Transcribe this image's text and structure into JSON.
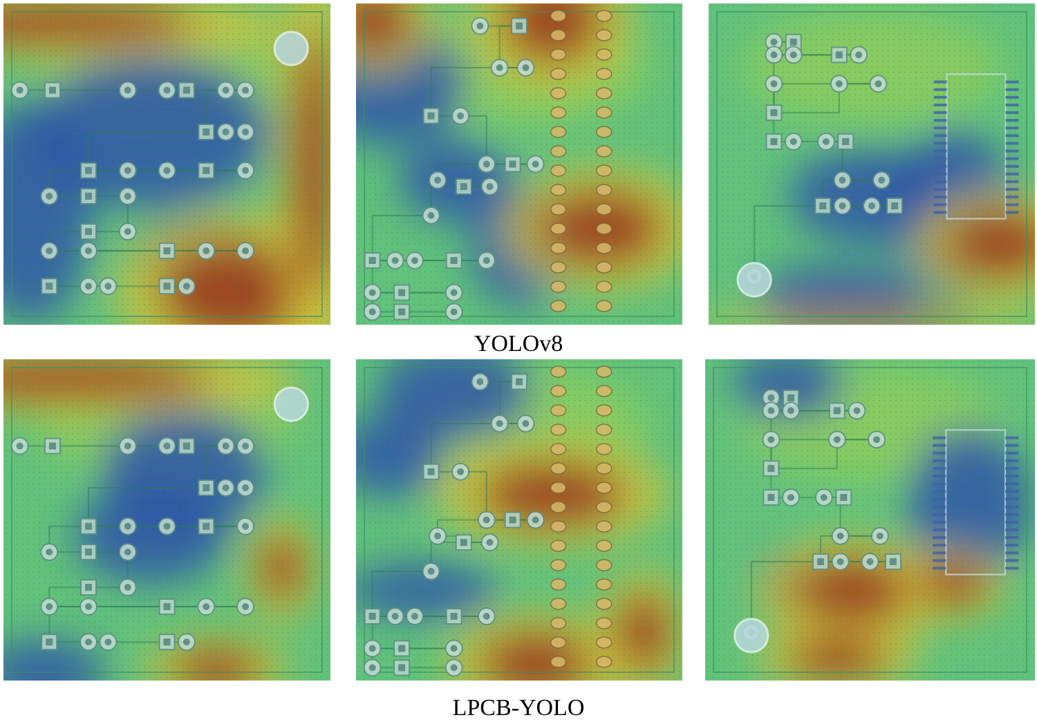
{
  "figure": {
    "rows": [
      {
        "label": "YOLOv8",
        "panels": [
          {
            "name": "yolov8-board-1",
            "pads": [
              [
                0.05,
                0.27
              ],
              [
                0.15,
                0.27
              ],
              [
                0.38,
                0.27
              ],
              [
                0.5,
                0.27
              ],
              [
                0.56,
                0.27
              ],
              [
                0.68,
                0.27
              ],
              [
                0.74,
                0.27
              ],
              [
                0.62,
                0.4
              ],
              [
                0.68,
                0.4
              ],
              [
                0.74,
                0.4
              ],
              [
                0.26,
                0.52
              ],
              [
                0.38,
                0.52
              ],
              [
                0.5,
                0.52
              ],
              [
                0.62,
                0.52
              ],
              [
                0.74,
                0.52
              ],
              [
                0.14,
                0.6
              ],
              [
                0.26,
                0.6
              ],
              [
                0.38,
                0.6
              ],
              [
                0.38,
                0.71
              ],
              [
                0.26,
                0.71
              ],
              [
                0.14,
                0.77
              ],
              [
                0.26,
                0.77
              ],
              [
                0.5,
                0.77
              ],
              [
                0.62,
                0.77
              ],
              [
                0.74,
                0.77
              ],
              [
                0.14,
                0.88
              ],
              [
                0.26,
                0.88
              ],
              [
                0.32,
                0.88
              ],
              [
                0.5,
                0.88
              ],
              [
                0.56,
                0.88
              ]
            ],
            "hot": [
              [
                0.7,
                0.9,
                130,
                90
              ],
              [
                0.15,
                0.06,
                260,
                40
              ],
              [
                0.95,
                0.5,
                40,
                240
              ]
            ],
            "cold": [
              [
                0.45,
                0.4,
                170,
                110
              ],
              [
                0.08,
                0.65,
                90,
                160
              ],
              [
                0.6,
                0.78,
                90,
                60
              ]
            ]
          },
          {
            "name": "yolov8-board-2",
            "pads": [
              [
                0.38,
                0.07
              ],
              [
                0.5,
                0.07
              ],
              [
                0.44,
                0.2
              ],
              [
                0.52,
                0.2
              ],
              [
                0.23,
                0.35
              ],
              [
                0.32,
                0.35
              ],
              [
                0.4,
                0.5
              ],
              [
                0.48,
                0.5
              ],
              [
                0.55,
                0.5
              ],
              [
                0.25,
                0.55
              ],
              [
                0.33,
                0.57
              ],
              [
                0.41,
                0.57
              ],
              [
                0.23,
                0.66
              ],
              [
                0.05,
                0.8
              ],
              [
                0.12,
                0.8
              ],
              [
                0.18,
                0.8
              ],
              [
                0.3,
                0.8
              ],
              [
                0.4,
                0.8
              ],
              [
                0.05,
                0.9
              ],
              [
                0.14,
                0.9
              ],
              [
                0.3,
                0.9
              ],
              [
                0.05,
                0.96
              ],
              [
                0.14,
                0.96
              ],
              [
                0.3,
                0.96
              ]
            ],
            "hot": [
              [
                0.75,
                0.7,
                110,
                70
              ],
              [
                0.6,
                0.05,
                90,
                80
              ],
              [
                0.05,
                0.05,
                70,
                60
              ]
            ],
            "cold": [
              [
                0.1,
                0.25,
                110,
                90
              ],
              [
                0.5,
                0.75,
                70,
                90
              ],
              [
                0.3,
                0.55,
                80,
                60
              ]
            ]
          },
          {
            "name": "yolov8-board-3",
            "pads": [
              [
                0.2,
                0.12
              ],
              [
                0.26,
                0.12
              ],
              [
                0.2,
                0.16
              ],
              [
                0.26,
                0.16
              ],
              [
                0.4,
                0.16
              ],
              [
                0.46,
                0.16
              ],
              [
                0.2,
                0.25
              ],
              [
                0.2,
                0.34
              ],
              [
                0.4,
                0.25
              ],
              [
                0.52,
                0.25
              ],
              [
                0.2,
                0.43
              ],
              [
                0.26,
                0.43
              ],
              [
                0.36,
                0.43
              ],
              [
                0.42,
                0.43
              ],
              [
                0.41,
                0.55
              ],
              [
                0.53,
                0.55
              ],
              [
                0.35,
                0.63
              ],
              [
                0.41,
                0.63
              ],
              [
                0.5,
                0.63
              ],
              [
                0.57,
                0.63
              ],
              [
                0.14,
                0.85
              ]
            ],
            "hot": [
              [
                0.9,
                0.75,
                100,
                60
              ],
              [
                0.5,
                0.99,
                200,
                15
              ]
            ],
            "cold": [
              [
                0.5,
                0.6,
                120,
                70
              ],
              [
                0.75,
                0.65,
                90,
                120
              ],
              [
                0.4,
                0.9,
                120,
                40
              ]
            ]
          }
        ]
      },
      {
        "label": "LPCB-YOLO",
        "panels": [
          {
            "name": "lpcb-yolo-board-1",
            "pads": [
              [
                0.05,
                0.27
              ],
              [
                0.15,
                0.27
              ],
              [
                0.38,
                0.27
              ],
              [
                0.5,
                0.27
              ],
              [
                0.56,
                0.27
              ],
              [
                0.68,
                0.27
              ],
              [
                0.74,
                0.27
              ],
              [
                0.62,
                0.4
              ],
              [
                0.68,
                0.4
              ],
              [
                0.74,
                0.4
              ],
              [
                0.26,
                0.52
              ],
              [
                0.38,
                0.52
              ],
              [
                0.5,
                0.52
              ],
              [
                0.62,
                0.52
              ],
              [
                0.74,
                0.52
              ],
              [
                0.14,
                0.6
              ],
              [
                0.26,
                0.6
              ],
              [
                0.38,
                0.6
              ],
              [
                0.38,
                0.71
              ],
              [
                0.26,
                0.71
              ],
              [
                0.14,
                0.77
              ],
              [
                0.26,
                0.77
              ],
              [
                0.5,
                0.77
              ],
              [
                0.62,
                0.77
              ],
              [
                0.74,
                0.77
              ],
              [
                0.14,
                0.88
              ],
              [
                0.26,
                0.88
              ],
              [
                0.32,
                0.88
              ],
              [
                0.5,
                0.88
              ],
              [
                0.56,
                0.88
              ]
            ],
            "hot": [
              [
                0.2,
                0.06,
                260,
                40
              ],
              [
                0.85,
                0.65,
                40,
                60
              ],
              [
                0.65,
                0.97,
                80,
                40
              ]
            ],
            "cold": [
              [
                0.55,
                0.35,
                120,
                90
              ],
              [
                0.45,
                0.55,
                110,
                70
              ],
              [
                0.12,
                0.98,
                90,
                50
              ]
            ]
          },
          {
            "name": "lpcb-yolo-board-2",
            "pads": [
              [
                0.38,
                0.07
              ],
              [
                0.5,
                0.07
              ],
              [
                0.44,
                0.2
              ],
              [
                0.52,
                0.2
              ],
              [
                0.23,
                0.35
              ],
              [
                0.32,
                0.35
              ],
              [
                0.4,
                0.5
              ],
              [
                0.48,
                0.5
              ],
              [
                0.55,
                0.5
              ],
              [
                0.25,
                0.55
              ],
              [
                0.33,
                0.57
              ],
              [
                0.41,
                0.57
              ],
              [
                0.23,
                0.66
              ],
              [
                0.05,
                0.8
              ],
              [
                0.12,
                0.8
              ],
              [
                0.18,
                0.8
              ],
              [
                0.3,
                0.8
              ],
              [
                0.4,
                0.8
              ],
              [
                0.05,
                0.9
              ],
              [
                0.14,
                0.9
              ],
              [
                0.3,
                0.9
              ],
              [
                0.05,
                0.96
              ],
              [
                0.14,
                0.96
              ],
              [
                0.3,
                0.96
              ]
            ],
            "hot": [
              [
                0.6,
                0.42,
                130,
                60
              ],
              [
                0.55,
                0.95,
                100,
                60
              ],
              [
                0.88,
                0.85,
                50,
                70
              ]
            ],
            "cold": [
              [
                0.3,
                0.1,
                110,
                70
              ],
              [
                0.1,
                0.3,
                80,
                60
              ],
              [
                0.2,
                0.72,
                110,
                40
              ]
            ]
          },
          {
            "name": "lpcb-yolo-board-3",
            "pads": [
              [
                0.2,
                0.12
              ],
              [
                0.26,
                0.12
              ],
              [
                0.2,
                0.16
              ],
              [
                0.26,
                0.16
              ],
              [
                0.4,
                0.16
              ],
              [
                0.46,
                0.16
              ],
              [
                0.2,
                0.25
              ],
              [
                0.2,
                0.34
              ],
              [
                0.4,
                0.25
              ],
              [
                0.52,
                0.25
              ],
              [
                0.2,
                0.43
              ],
              [
                0.26,
                0.43
              ],
              [
                0.36,
                0.43
              ],
              [
                0.42,
                0.43
              ],
              [
                0.41,
                0.55
              ],
              [
                0.53,
                0.55
              ],
              [
                0.35,
                0.63
              ],
              [
                0.41,
                0.63
              ],
              [
                0.5,
                0.63
              ],
              [
                0.57,
                0.63
              ],
              [
                0.14,
                0.85
              ]
            ],
            "hot": [
              [
                0.45,
                0.72,
                110,
                60
              ],
              [
                0.75,
                0.7,
                60,
                40
              ],
              [
                0.4,
                0.93,
                90,
                40
              ]
            ],
            "cold": [
              [
                0.8,
                0.45,
                90,
                110
              ],
              [
                0.25,
                0.08,
                80,
                50
              ],
              [
                0.22,
                0.7,
                30,
                50
              ]
            ]
          }
        ]
      }
    ]
  }
}
